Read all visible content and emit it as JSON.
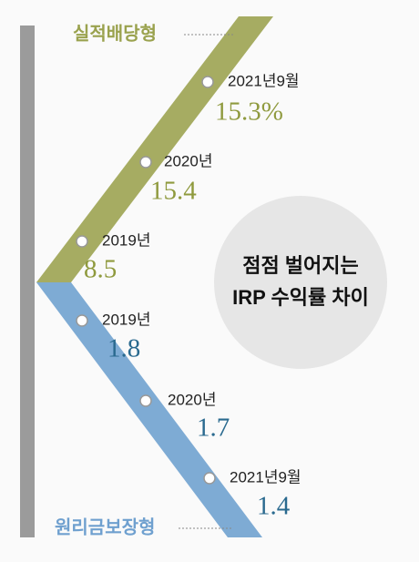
{
  "groups": [
    {
      "title": "실적배당형",
      "points": [
        {
          "label": "2021년9월",
          "value": "15.3%"
        },
        {
          "label": "2020년",
          "value": "15.4"
        },
        {
          "label": "2019년",
          "value": "8.5"
        }
      ]
    },
    {
      "title": "원리금보장형",
      "points": [
        {
          "label": "2019년",
          "value": "1.8"
        },
        {
          "label": "2020년",
          "value": "1.7"
        },
        {
          "label": "2021년9월",
          "value": "1.4"
        }
      ]
    }
  ],
  "callout": {
    "lines": [
      "점점 벌어지는",
      "IRP 수익률 차이"
    ]
  }
}
